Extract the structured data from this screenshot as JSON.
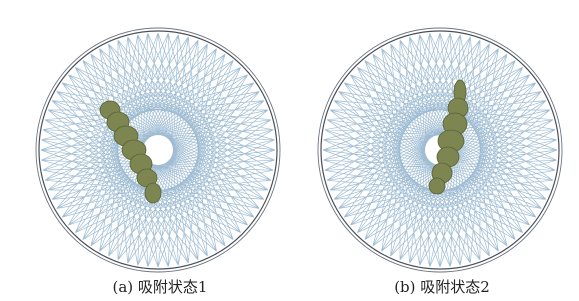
{
  "panels": [
    {
      "caption": "(a) 吸附状态1"
    },
    {
      "caption": "(b) 吸附状态2"
    }
  ]
}
